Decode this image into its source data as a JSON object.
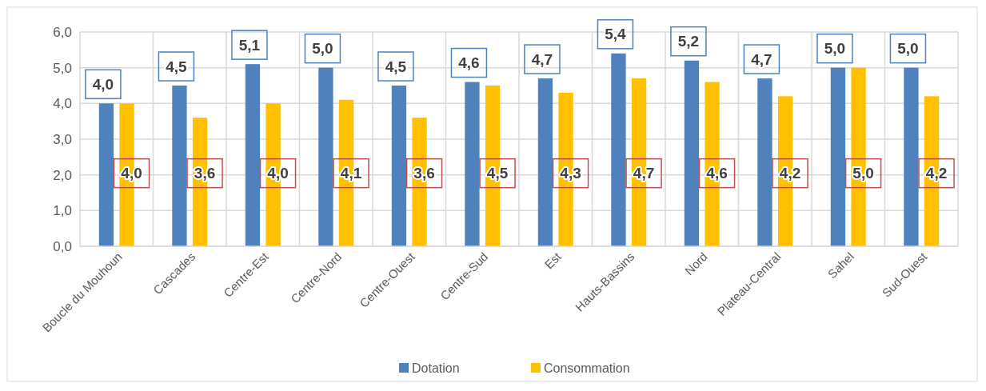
{
  "chart_data": {
    "type": "bar",
    "categories": [
      "Boucle du Mouhoun",
      "Cascades",
      "Centre-Est",
      "Centre-Nord",
      "Centre-Ouest",
      "Centre-Sud",
      "Est",
      "Hauts-Bassins",
      "Nord",
      "Plateau-Central",
      "Sahel",
      "Sud-Ouest"
    ],
    "series": [
      {
        "name": "Dotation",
        "color": "#4f81bd",
        "values": [
          4.0,
          4.5,
          5.1,
          5.0,
          4.5,
          4.6,
          4.7,
          5.4,
          5.2,
          4.7,
          5.0,
          5.0
        ],
        "value_labels": [
          "4,0",
          "4,5",
          "5,1",
          "5,0",
          "4,5",
          "4,6",
          "4,7",
          "5,4",
          "5,2",
          "4,7",
          "5,0",
          "5,0"
        ]
      },
      {
        "name": "Consommation",
        "color": "#ffc000",
        "values": [
          4.0,
          3.6,
          4.0,
          4.1,
          3.6,
          4.5,
          4.3,
          4.7,
          4.6,
          4.2,
          5.0,
          4.2
        ],
        "value_labels": [
          "4,0",
          "3,6",
          "4,0",
          "4,1",
          "3,6",
          "4,5",
          "4,3",
          "4,7",
          "4,6",
          "4,2",
          "5,0",
          "4,2"
        ]
      }
    ],
    "ylim": [
      0,
      6
    ],
    "yticks": [
      {
        "value": 0,
        "label": "0,0"
      },
      {
        "value": 1,
        "label": "1,0"
      },
      {
        "value": 2,
        "label": "2,0"
      },
      {
        "value": 3,
        "label": "3,0"
      },
      {
        "value": 4,
        "label": "4,0"
      },
      {
        "value": 5,
        "label": "5,0"
      },
      {
        "value": 6,
        "label": "6,0"
      }
    ],
    "grid": true,
    "legend": "bottom"
  }
}
